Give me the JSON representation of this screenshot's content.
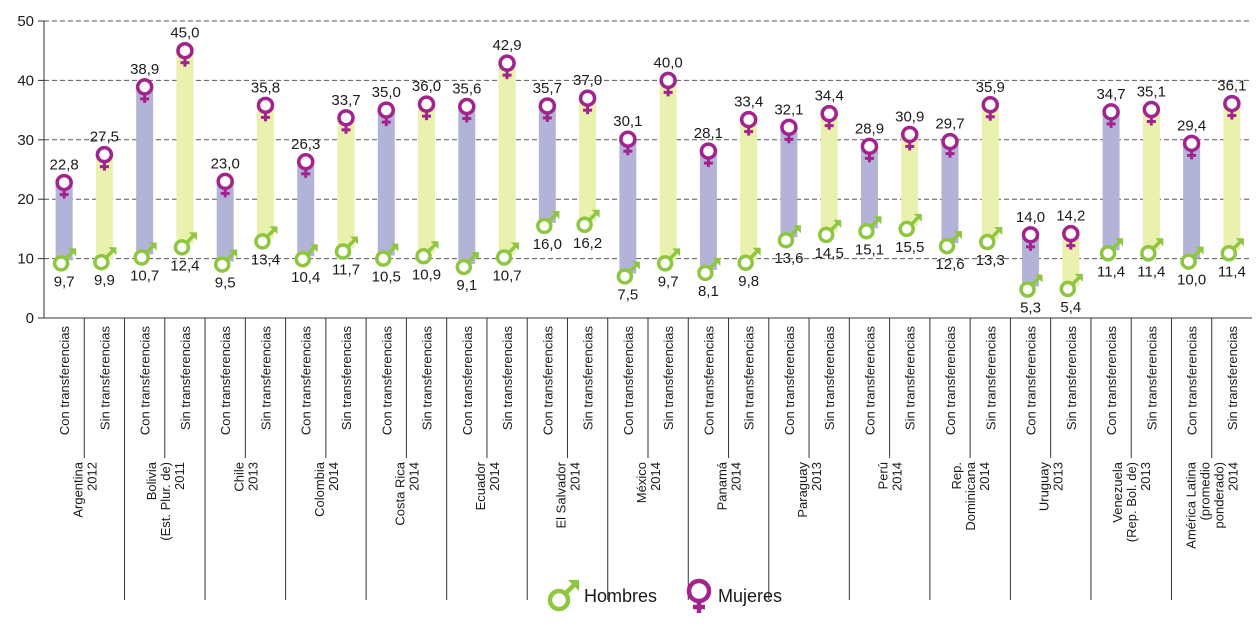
{
  "chart_data": {
    "type": "range-bar",
    "ylim": [
      0,
      50
    ],
    "yticks": [
      0,
      10,
      20,
      30,
      40,
      50
    ],
    "grid": true,
    "legend_position": "bottom-center",
    "series": [
      {
        "name": "Hombres",
        "key": "hombres",
        "color": "#8dc63f"
      },
      {
        "name": "Mujeres",
        "key": "mujeres",
        "color": "#a3238e"
      }
    ],
    "bar_colors": {
      "Con transferencias": "#b3b3d7",
      "Sin transferencias": "#eaf0ad"
    },
    "groups": [
      {
        "label": [
          "Argentina",
          "2012"
        ],
        "bars": [
          {
            "label": "Con transferencias",
            "hombres": 9.7,
            "mujeres": 22.8,
            "h_text": "9,7",
            "m_text": "22,8"
          },
          {
            "label": "Sin transferencias",
            "hombres": 9.9,
            "mujeres": 27.5,
            "h_text": "9,9",
            "m_text": "27,5"
          }
        ]
      },
      {
        "label": [
          "Bolivia",
          "(Est. Plur. de)",
          "2011"
        ],
        "bars": [
          {
            "label": "Con transferencias",
            "hombres": 10.7,
            "mujeres": 38.9,
            "h_text": "10,7",
            "m_text": "38,9"
          },
          {
            "label": "Sin transferencias",
            "hombres": 12.4,
            "mujeres": 45.0,
            "h_text": "12,4",
            "m_text": "45,0"
          }
        ]
      },
      {
        "label": [
          "Chile",
          "2013"
        ],
        "bars": [
          {
            "label": "Con transferencias",
            "hombres": 9.5,
            "mujeres": 23.0,
            "h_text": "9,5",
            "m_text": "23,0"
          },
          {
            "label": "Sin transferencias",
            "hombres": 13.4,
            "mujeres": 35.8,
            "h_text": "13,4",
            "m_text": "35,8"
          }
        ]
      },
      {
        "label": [
          "Colombia",
          "2014"
        ],
        "bars": [
          {
            "label": "Con transferencias",
            "hombres": 10.4,
            "mujeres": 26.3,
            "h_text": "10,4",
            "m_text": "26,3"
          },
          {
            "label": "Sin transferencias",
            "hombres": 11.7,
            "mujeres": 33.7,
            "h_text": "11,7",
            "m_text": "33,7"
          }
        ]
      },
      {
        "label": [
          "Costa Rica",
          "2014"
        ],
        "bars": [
          {
            "label": "Con transferencias",
            "hombres": 10.5,
            "mujeres": 35.0,
            "h_text": "10,5",
            "m_text": "35,0"
          },
          {
            "label": "Sin transferencias",
            "hombres": 10.9,
            "mujeres": 36.0,
            "h_text": "10,9",
            "m_text": "36,0"
          }
        ]
      },
      {
        "label": [
          "Ecuador",
          "2014"
        ],
        "bars": [
          {
            "label": "Con transferencias",
            "hombres": 9.1,
            "mujeres": 35.6,
            "h_text": "9,1",
            "m_text": "35,6"
          },
          {
            "label": "Sin transferencias",
            "hombres": 10.7,
            "mujeres": 42.9,
            "h_text": "10,7",
            "m_text": "42,9"
          }
        ]
      },
      {
        "label": [
          "El Salvador",
          "2014"
        ],
        "bars": [
          {
            "label": "Con transferencias",
            "hombres": 16.0,
            "mujeres": 35.7,
            "h_text": "16,0",
            "m_text": "35,7"
          },
          {
            "label": "Sin transferencias",
            "hombres": 16.2,
            "mujeres": 37.0,
            "h_text": "16,2",
            "m_text": "37,0"
          }
        ]
      },
      {
        "label": [
          "México",
          "2014"
        ],
        "bars": [
          {
            "label": "Con transferencias",
            "hombres": 7.5,
            "mujeres": 30.1,
            "h_text": "7,5",
            "m_text": "30,1"
          },
          {
            "label": "Sin transferencias",
            "hombres": 9.7,
            "mujeres": 40.0,
            "h_text": "9,7",
            "m_text": "40,0"
          }
        ]
      },
      {
        "label": [
          "Panamá",
          "2014"
        ],
        "bars": [
          {
            "label": "Con transferencias",
            "hombres": 8.1,
            "mujeres": 28.1,
            "h_text": "8,1",
            "m_text": "28,1"
          },
          {
            "label": "Sin transferencias",
            "hombres": 9.8,
            "mujeres": 33.4,
            "h_text": "9,8",
            "m_text": "33,4"
          }
        ]
      },
      {
        "label": [
          "Paraguay",
          "2013"
        ],
        "bars": [
          {
            "label": "Con transferencias",
            "hombres": 13.6,
            "mujeres": 32.1,
            "h_text": "13,6",
            "m_text": "32,1"
          },
          {
            "label": "Sin transferencias",
            "hombres": 14.5,
            "mujeres": 34.4,
            "h_text": "14,5",
            "m_text": "34,4"
          }
        ]
      },
      {
        "label": [
          "Perú",
          "2014"
        ],
        "bars": [
          {
            "label": "Con transferencias",
            "hombres": 15.1,
            "mujeres": 28.9,
            "h_text": "15,1",
            "m_text": "28,9"
          },
          {
            "label": "Sin transferencias",
            "hombres": 15.5,
            "mujeres": 30.9,
            "h_text": "15,5",
            "m_text": "30,9"
          }
        ]
      },
      {
        "label": [
          "Rep.",
          "Dominicana",
          "2014"
        ],
        "bars": [
          {
            "label": "Con transferencias",
            "hombres": 12.6,
            "mujeres": 29.7,
            "h_text": "12,6",
            "m_text": "29,7"
          },
          {
            "label": "Sin transferencias",
            "hombres": 13.3,
            "mujeres": 35.9,
            "h_text": "13,3",
            "m_text": "35,9"
          }
        ]
      },
      {
        "label": [
          "Uruguay",
          "2013"
        ],
        "bars": [
          {
            "label": "Con transferencias",
            "hombres": 5.3,
            "mujeres": 14.0,
            "h_text": "5,3",
            "m_text": "14,0"
          },
          {
            "label": "Sin transferencias",
            "hombres": 5.4,
            "mujeres": 14.2,
            "h_text": "5,4",
            "m_text": "14,2"
          }
        ]
      },
      {
        "label": [
          "Venezuela",
          "(Rep. Bol. de)",
          "2013"
        ],
        "bars": [
          {
            "label": "Con transferencias",
            "hombres": 11.4,
            "mujeres": 34.7,
            "h_text": "11,4",
            "m_text": "34,7"
          },
          {
            "label": "Sin transferencias",
            "hombres": 11.4,
            "mujeres": 35.1,
            "h_text": "11,4",
            "m_text": "35,1"
          }
        ]
      },
      {
        "label": [
          "América Latina",
          "(promedio",
          "ponderado)",
          "2014"
        ],
        "bars": [
          {
            "label": "Con transferencias",
            "hombres": 10.0,
            "mujeres": 29.4,
            "h_text": "10,0",
            "m_text": "29,4"
          },
          {
            "label": "Sin transferencias",
            "hombres": 11.4,
            "mujeres": 36.1,
            "h_text": "11,4",
            "m_text": "36,1"
          }
        ]
      }
    ]
  }
}
